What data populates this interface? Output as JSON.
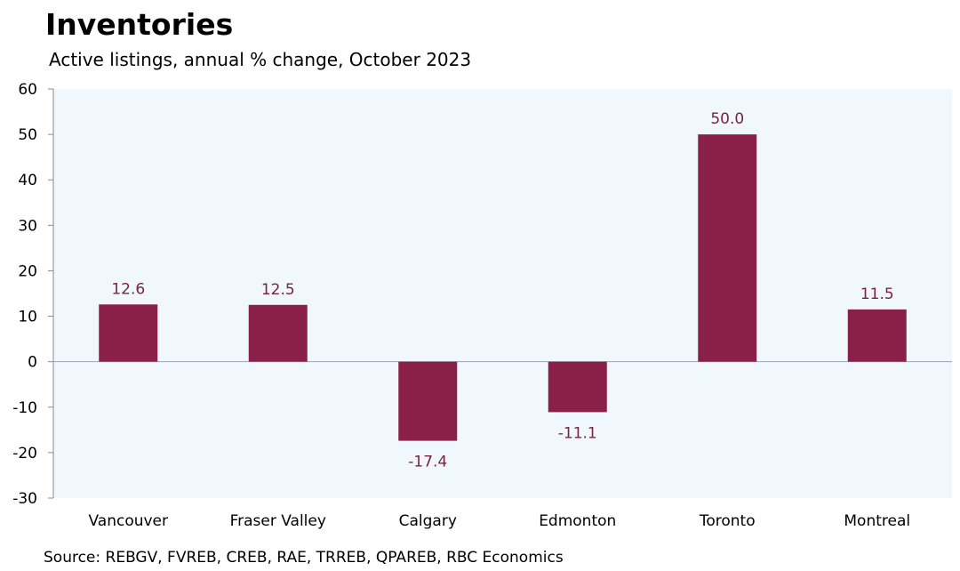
{
  "chart_data": {
    "type": "bar",
    "title": "Inventories",
    "subtitle": "Active listings, annual % change, October 2023",
    "source": "Source: REBGV, FVREB, CREB, RAE, TRREB, QPAREB, RBC Economics",
    "categories": [
      "Vancouver",
      "Fraser Valley",
      "Calgary",
      "Edmonton",
      "Toronto",
      "Montreal"
    ],
    "values": [
      12.6,
      12.5,
      -17.4,
      -11.1,
      50.0,
      11.5
    ],
    "data_labels": [
      "12.6",
      "12.5",
      "-17.4",
      "-11.1",
      "50.0",
      "11.5"
    ],
    "ylim": [
      -30,
      60
    ],
    "yticks": [
      60,
      50,
      40,
      30,
      20,
      10,
      0,
      -10,
      -20,
      -30
    ],
    "xlabel": "",
    "ylabel": "",
    "grid": false,
    "legend": "none",
    "colors": {
      "bar": "#8a2048",
      "label": "#7a1f45",
      "plot_background": "#f1f8fd",
      "axis": "#8a8a8a",
      "zero_line": "#9aa3b4"
    }
  }
}
